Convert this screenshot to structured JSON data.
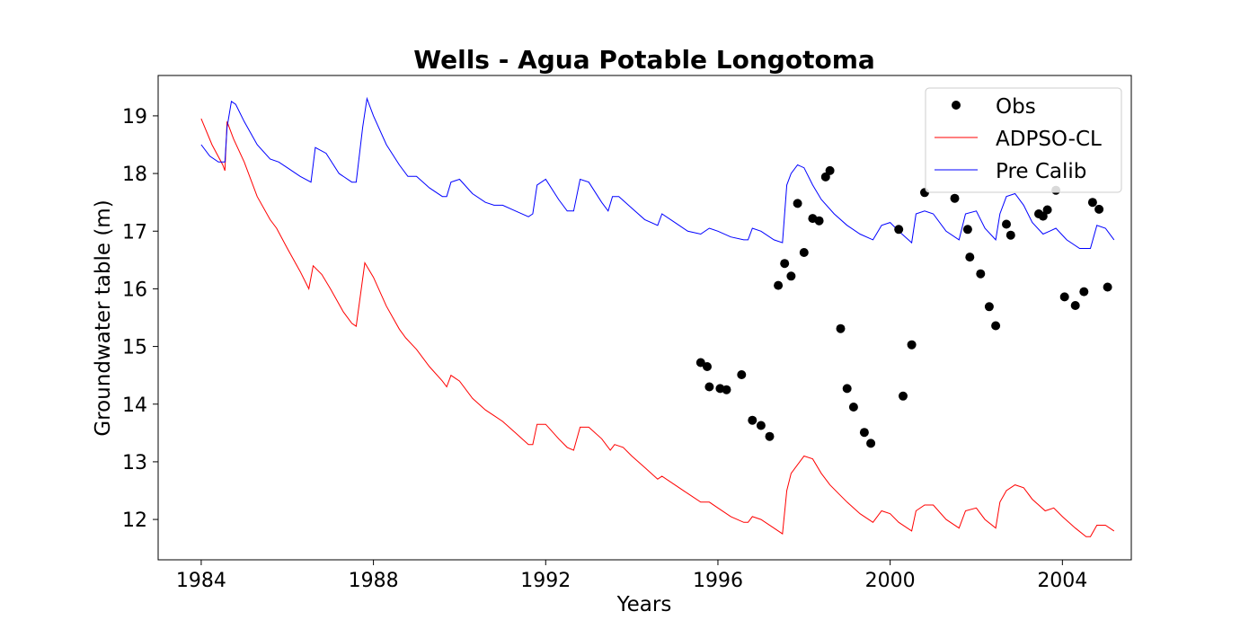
{
  "chart_data": {
    "type": "line",
    "title": "Wells - Agua Potable Longotoma",
    "xlabel": "Years",
    "ylabel": "Groundwater table (m)",
    "xlim": [
      1983.0,
      2005.6
    ],
    "ylim": [
      11.3,
      19.7
    ],
    "xticks": [
      1984,
      1988,
      1992,
      1996,
      2000,
      2004
    ],
    "yticks": [
      12,
      13,
      14,
      15,
      16,
      17,
      18,
      19
    ],
    "grid": false,
    "legend_position": "top-right",
    "series": [
      {
        "name": "Obs",
        "kind": "scatter",
        "color": "#000000",
        "points": [
          [
            1995.6,
            14.72
          ],
          [
            1995.75,
            14.65
          ],
          [
            1995.8,
            14.3
          ],
          [
            1996.05,
            14.27
          ],
          [
            1996.2,
            14.25
          ],
          [
            1996.55,
            14.51
          ],
          [
            1996.8,
            13.72
          ],
          [
            1997.0,
            13.63
          ],
          [
            1997.2,
            13.44
          ],
          [
            1997.4,
            16.06
          ],
          [
            1997.55,
            16.44
          ],
          [
            1997.7,
            16.22
          ],
          [
            1997.85,
            17.48
          ],
          [
            1998.0,
            16.63
          ],
          [
            1998.2,
            17.22
          ],
          [
            1998.35,
            17.18
          ],
          [
            1998.5,
            17.94
          ],
          [
            1998.6,
            18.05
          ],
          [
            1998.85,
            15.31
          ],
          [
            1999.0,
            14.27
          ],
          [
            1999.15,
            13.95
          ],
          [
            1999.4,
            13.51
          ],
          [
            1999.55,
            13.32
          ],
          [
            2000.2,
            17.03
          ],
          [
            2000.3,
            14.14
          ],
          [
            2000.5,
            15.03
          ],
          [
            2000.8,
            17.67
          ],
          [
            2001.5,
            17.57
          ],
          [
            2001.8,
            17.03
          ],
          [
            2001.85,
            16.55
          ],
          [
            2002.1,
            16.26
          ],
          [
            2002.3,
            15.69
          ],
          [
            2002.45,
            15.36
          ],
          [
            2002.7,
            17.12
          ],
          [
            2002.8,
            16.93
          ],
          [
            2003.45,
            17.3
          ],
          [
            2003.55,
            17.26
          ],
          [
            2003.65,
            17.37
          ],
          [
            2003.85,
            17.71
          ],
          [
            2004.05,
            15.86
          ],
          [
            2004.3,
            15.71
          ],
          [
            2004.5,
            15.95
          ],
          [
            2004.7,
            17.5
          ],
          [
            2004.85,
            17.38
          ],
          [
            2005.05,
            16.03
          ]
        ]
      },
      {
        "name": "ADPSO-CL",
        "kind": "line",
        "color": "#ff0000",
        "points": [
          [
            1984.0,
            18.95
          ],
          [
            1984.25,
            18.5
          ],
          [
            1984.5,
            18.15
          ],
          [
            1984.55,
            18.05
          ],
          [
            1984.6,
            18.9
          ],
          [
            1984.75,
            18.6
          ],
          [
            1985.0,
            18.2
          ],
          [
            1985.3,
            17.6
          ],
          [
            1985.6,
            17.2
          ],
          [
            1985.75,
            17.05
          ],
          [
            1986.0,
            16.7
          ],
          [
            1986.3,
            16.3
          ],
          [
            1986.5,
            16.0
          ],
          [
            1986.6,
            16.4
          ],
          [
            1986.8,
            16.25
          ],
          [
            1987.0,
            16.0
          ],
          [
            1987.3,
            15.6
          ],
          [
            1987.5,
            15.4
          ],
          [
            1987.6,
            15.35
          ],
          [
            1987.8,
            16.45
          ],
          [
            1988.0,
            16.2
          ],
          [
            1988.3,
            15.7
          ],
          [
            1988.6,
            15.3
          ],
          [
            1988.75,
            15.15
          ],
          [
            1989.0,
            14.95
          ],
          [
            1989.3,
            14.65
          ],
          [
            1989.6,
            14.4
          ],
          [
            1989.7,
            14.3
          ],
          [
            1989.8,
            14.5
          ],
          [
            1990.0,
            14.4
          ],
          [
            1990.3,
            14.1
          ],
          [
            1990.6,
            13.9
          ],
          [
            1990.8,
            13.8
          ],
          [
            1991.0,
            13.7
          ],
          [
            1991.3,
            13.5
          ],
          [
            1991.6,
            13.3
          ],
          [
            1991.7,
            13.3
          ],
          [
            1991.8,
            13.65
          ],
          [
            1992.0,
            13.65
          ],
          [
            1992.3,
            13.4
          ],
          [
            1992.5,
            13.25
          ],
          [
            1992.65,
            13.2
          ],
          [
            1992.8,
            13.6
          ],
          [
            1993.0,
            13.6
          ],
          [
            1993.3,
            13.4
          ],
          [
            1993.5,
            13.2
          ],
          [
            1993.6,
            13.3
          ],
          [
            1993.8,
            13.25
          ],
          [
            1994.0,
            13.1
          ],
          [
            1994.3,
            12.9
          ],
          [
            1994.6,
            12.7
          ],
          [
            1994.7,
            12.75
          ],
          [
            1995.0,
            12.6
          ],
          [
            1995.3,
            12.45
          ],
          [
            1995.6,
            12.3
          ],
          [
            1995.8,
            12.3
          ],
          [
            1996.0,
            12.2
          ],
          [
            1996.3,
            12.05
          ],
          [
            1996.6,
            11.95
          ],
          [
            1996.7,
            11.95
          ],
          [
            1996.8,
            12.05
          ],
          [
            1997.0,
            12.0
          ],
          [
            1997.3,
            11.85
          ],
          [
            1997.5,
            11.75
          ],
          [
            1997.6,
            12.5
          ],
          [
            1997.7,
            12.8
          ],
          [
            1997.9,
            13.0
          ],
          [
            1998.0,
            13.1
          ],
          [
            1998.2,
            13.05
          ],
          [
            1998.4,
            12.8
          ],
          [
            1998.6,
            12.6
          ],
          [
            1998.8,
            12.45
          ],
          [
            1999.0,
            12.3
          ],
          [
            1999.3,
            12.1
          ],
          [
            1999.6,
            11.95
          ],
          [
            1999.8,
            12.15
          ],
          [
            2000.0,
            12.1
          ],
          [
            2000.2,
            11.95
          ],
          [
            2000.5,
            11.8
          ],
          [
            2000.6,
            12.15
          ],
          [
            2000.8,
            12.25
          ],
          [
            2001.0,
            12.25
          ],
          [
            2001.3,
            12.0
          ],
          [
            2001.6,
            11.85
          ],
          [
            2001.75,
            12.15
          ],
          [
            2002.0,
            12.2
          ],
          [
            2002.2,
            12.0
          ],
          [
            2002.45,
            11.85
          ],
          [
            2002.55,
            12.3
          ],
          [
            2002.7,
            12.5
          ],
          [
            2002.9,
            12.6
          ],
          [
            2003.1,
            12.55
          ],
          [
            2003.3,
            12.35
          ],
          [
            2003.6,
            12.15
          ],
          [
            2003.8,
            12.2
          ],
          [
            2004.0,
            12.05
          ],
          [
            2004.3,
            11.85
          ],
          [
            2004.55,
            11.7
          ],
          [
            2004.65,
            11.7
          ],
          [
            2004.8,
            11.9
          ],
          [
            2005.0,
            11.9
          ],
          [
            2005.2,
            11.8
          ]
        ]
      },
      {
        "name": "Pre Calib",
        "kind": "line",
        "color": "#0000ff",
        "points": [
          [
            1984.0,
            18.5
          ],
          [
            1984.2,
            18.3
          ],
          [
            1984.4,
            18.2
          ],
          [
            1984.55,
            18.2
          ],
          [
            1984.6,
            18.8
          ],
          [
            1984.7,
            19.25
          ],
          [
            1984.8,
            19.2
          ],
          [
            1985.0,
            18.9
          ],
          [
            1985.3,
            18.5
          ],
          [
            1985.6,
            18.25
          ],
          [
            1985.8,
            18.2
          ],
          [
            1986.0,
            18.1
          ],
          [
            1986.3,
            17.95
          ],
          [
            1986.55,
            17.85
          ],
          [
            1986.65,
            18.45
          ],
          [
            1986.9,
            18.35
          ],
          [
            1987.2,
            18.0
          ],
          [
            1987.5,
            17.85
          ],
          [
            1987.6,
            17.85
          ],
          [
            1987.75,
            18.8
          ],
          [
            1987.85,
            19.3
          ],
          [
            1988.0,
            19.0
          ],
          [
            1988.3,
            18.5
          ],
          [
            1988.6,
            18.15
          ],
          [
            1988.8,
            17.95
          ],
          [
            1989.0,
            17.95
          ],
          [
            1989.3,
            17.75
          ],
          [
            1989.6,
            17.6
          ],
          [
            1989.7,
            17.6
          ],
          [
            1989.8,
            17.85
          ],
          [
            1990.0,
            17.9
          ],
          [
            1990.3,
            17.65
          ],
          [
            1990.6,
            17.5
          ],
          [
            1990.8,
            17.45
          ],
          [
            1991.0,
            17.45
          ],
          [
            1991.3,
            17.35
          ],
          [
            1991.6,
            17.25
          ],
          [
            1991.7,
            17.3
          ],
          [
            1991.8,
            17.8
          ],
          [
            1992.0,
            17.9
          ],
          [
            1992.3,
            17.55
          ],
          [
            1992.5,
            17.35
          ],
          [
            1992.65,
            17.35
          ],
          [
            1992.8,
            17.9
          ],
          [
            1993.0,
            17.85
          ],
          [
            1993.3,
            17.5
          ],
          [
            1993.45,
            17.35
          ],
          [
            1993.55,
            17.6
          ],
          [
            1993.7,
            17.6
          ],
          [
            1994.0,
            17.4
          ],
          [
            1994.3,
            17.2
          ],
          [
            1994.6,
            17.1
          ],
          [
            1994.7,
            17.3
          ],
          [
            1995.0,
            17.15
          ],
          [
            1995.3,
            17.0
          ],
          [
            1995.6,
            16.95
          ],
          [
            1995.8,
            17.05
          ],
          [
            1996.0,
            17.0
          ],
          [
            1996.3,
            16.9
          ],
          [
            1996.6,
            16.85
          ],
          [
            1996.7,
            16.85
          ],
          [
            1996.8,
            17.05
          ],
          [
            1997.0,
            17.0
          ],
          [
            1997.3,
            16.85
          ],
          [
            1997.5,
            16.8
          ],
          [
            1997.6,
            17.8
          ],
          [
            1997.7,
            18.0
          ],
          [
            1997.85,
            18.15
          ],
          [
            1998.0,
            18.1
          ],
          [
            1998.2,
            17.8
          ],
          [
            1998.4,
            17.55
          ],
          [
            1998.7,
            17.3
          ],
          [
            1999.0,
            17.1
          ],
          [
            1999.3,
            16.95
          ],
          [
            1999.6,
            16.85
          ],
          [
            1999.8,
            17.1
          ],
          [
            2000.0,
            17.15
          ],
          [
            2000.2,
            17.0
          ],
          [
            2000.5,
            16.8
          ],
          [
            2000.6,
            17.3
          ],
          [
            2000.8,
            17.35
          ],
          [
            2001.0,
            17.3
          ],
          [
            2001.3,
            17.0
          ],
          [
            2001.6,
            16.85
          ],
          [
            2001.75,
            17.3
          ],
          [
            2002.0,
            17.35
          ],
          [
            2002.2,
            17.05
          ],
          [
            2002.45,
            16.85
          ],
          [
            2002.55,
            17.3
          ],
          [
            2002.7,
            17.6
          ],
          [
            2002.9,
            17.65
          ],
          [
            2003.1,
            17.45
          ],
          [
            2003.3,
            17.15
          ],
          [
            2003.55,
            16.95
          ],
          [
            2003.7,
            17.0
          ],
          [
            2003.85,
            17.05
          ],
          [
            2004.1,
            16.85
          ],
          [
            2004.4,
            16.7
          ],
          [
            2004.65,
            16.7
          ],
          [
            2004.8,
            17.1
          ],
          [
            2005.0,
            17.05
          ],
          [
            2005.2,
            16.85
          ]
        ]
      }
    ]
  }
}
